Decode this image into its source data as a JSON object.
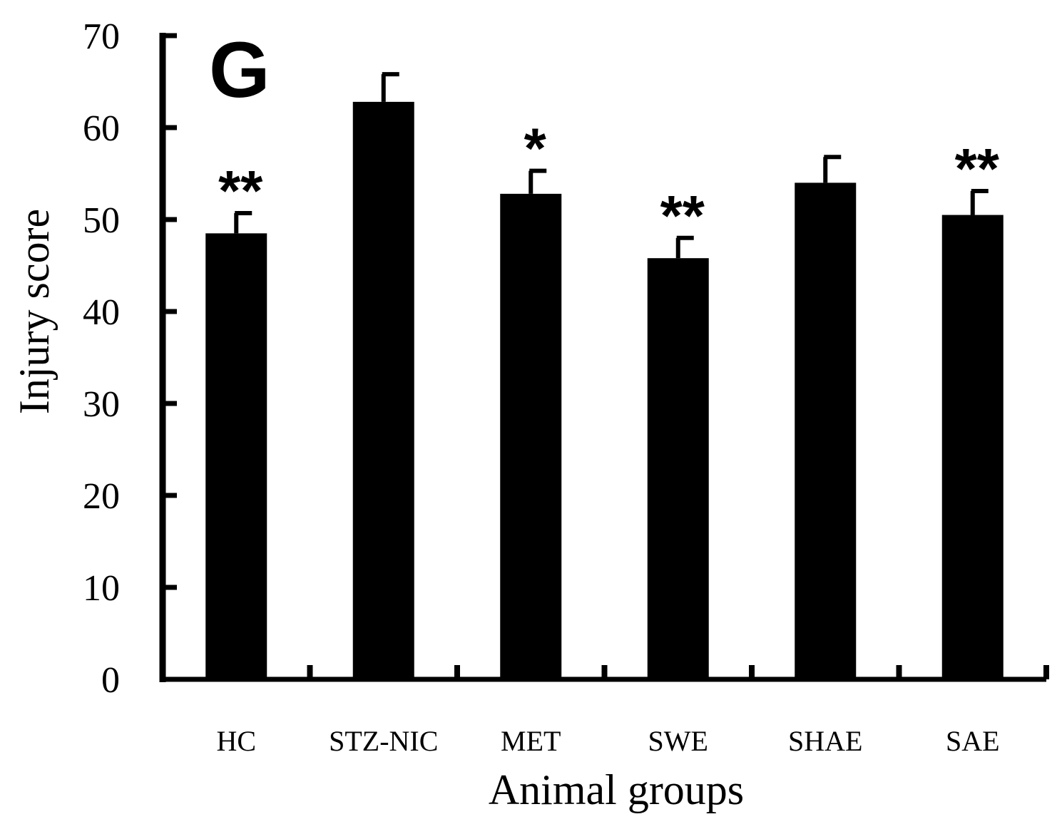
{
  "chart_data": {
    "type": "bar",
    "panel_label": "G",
    "xlabel": "Animal groups",
    "ylabel": "Injury score",
    "ylim": [
      0,
      70
    ],
    "yticks": [
      0,
      10,
      20,
      30,
      40,
      50,
      60,
      70
    ],
    "categories": [
      "HC",
      "STZ-NIC",
      "MET",
      "SWE",
      "SHAE",
      "SAE"
    ],
    "values": [
      48.5,
      62.8,
      52.8,
      45.8,
      54.0,
      50.5
    ],
    "errors": [
      2.2,
      3.0,
      2.5,
      2.2,
      2.8,
      2.6
    ],
    "significance": [
      "**",
      "",
      "*",
      "**",
      "",
      "**"
    ],
    "bar_color": "#000000",
    "grid": false
  }
}
